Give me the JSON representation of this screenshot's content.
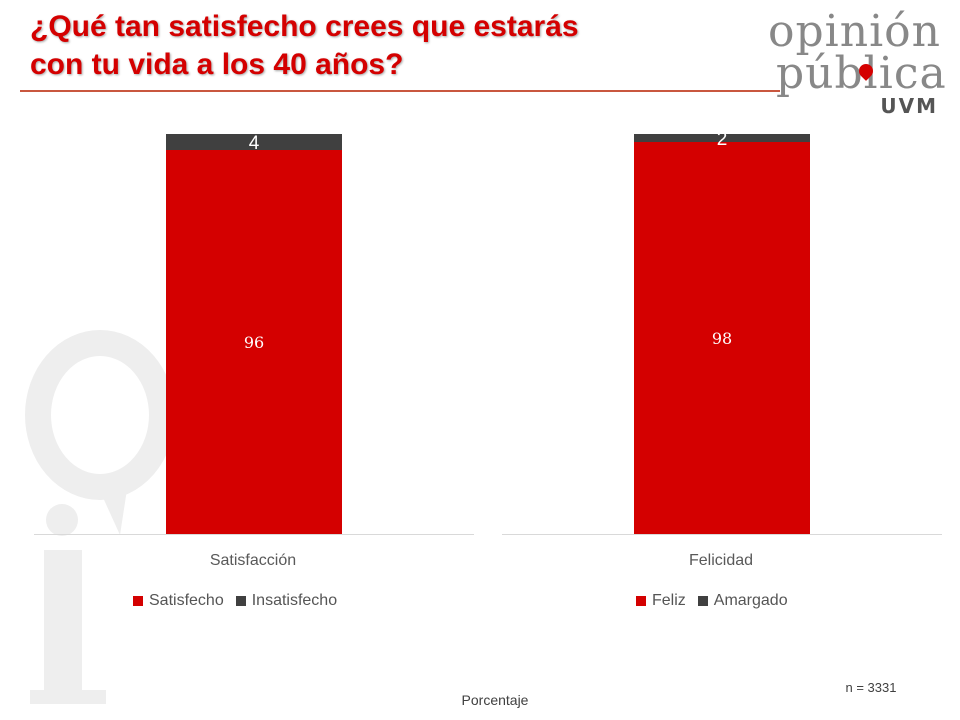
{
  "title_line1": "¿Qué tan satisfecho crees que estarás",
  "title_line2": "con tu vida a los 40 años?",
  "logo": {
    "line1": "opinión",
    "line2": "pública",
    "line3": "UVM"
  },
  "sample": "n = 3331",
  "footer_label": "Porcentaje",
  "colors": {
    "positive": "#d40000",
    "negative": "#404040",
    "title": "#d40000"
  },
  "chart_data": [
    {
      "type": "bar",
      "stacked": true,
      "category": "Satisfacción",
      "ylim": [
        0,
        100
      ],
      "series": [
        {
          "name": "Satisfecho",
          "value": 96,
          "color": "#d40000",
          "label": "96"
        },
        {
          "name": "Insatisfecho",
          "value": 4,
          "color": "#404040",
          "label": "4"
        }
      ]
    },
    {
      "type": "bar",
      "stacked": true,
      "category": "Felicidad",
      "ylim": [
        0,
        100
      ],
      "series": [
        {
          "name": "Feliz",
          "value": 98,
          "color": "#d40000",
          "label": "98"
        },
        {
          "name": "Amargado",
          "value": 2,
          "color": "#404040",
          "label": "2"
        }
      ]
    }
  ]
}
